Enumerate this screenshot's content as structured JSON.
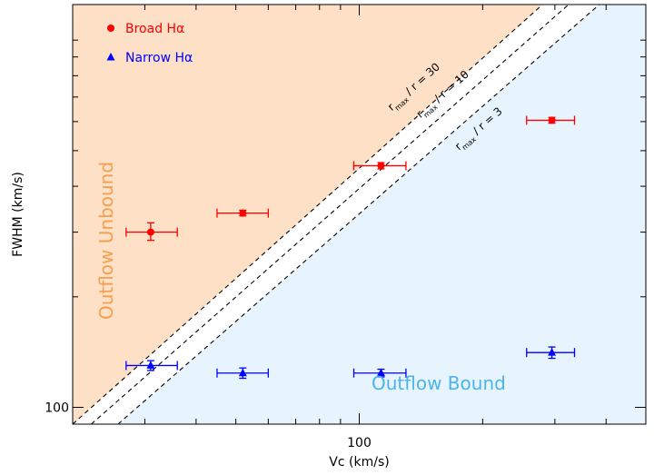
{
  "chart_data": {
    "type": "scatter",
    "xlabel": "Vc (km/s)",
    "ylabel": "FWHM (km/s)",
    "x_scale": "log",
    "y_scale": "log",
    "xlim": [
      20,
      500
    ],
    "ylim": [
      90,
      1250
    ],
    "x_tick_labels": [
      {
        "value": 100,
        "label": "100"
      }
    ],
    "y_tick_labels": [
      {
        "value": 100,
        "label": "100"
      }
    ],
    "x_minor_ticks": [
      30,
      40,
      50,
      60,
      70,
      80,
      90,
      200,
      300,
      400
    ],
    "y_minor_ticks": [
      200,
      300,
      400,
      500,
      600,
      700,
      800,
      900,
      1000
    ],
    "legend": {
      "placement": "top-left",
      "entries": [
        {
          "label": "Broad Hα",
          "marker": "circle",
          "color": "#ff0000"
        },
        {
          "label": "Narrow Hα",
          "marker": "triangle",
          "color": "#0000ff"
        }
      ]
    },
    "regions": {
      "unbound_label": "Outflow Unbound",
      "bound_label": "Outflow Bound",
      "unbound_color": "#fde0c6",
      "bound_color": "#e8f4fd",
      "unbound_text_color": "#f5a050",
      "bound_text_color": "#4ab4f0"
    },
    "lines": [
      {
        "label": "r_max / r = 30",
        "main": "r",
        "sub": "max",
        "rest": " / r = 30",
        "x1": 20,
        "y1": 90,
        "x2": 280,
        "y2": 1250,
        "label_x": 120,
        "label_y": 640
      },
      {
        "label": "r_max / r = 10",
        "main": "r",
        "sub": "max",
        "rest": " / r = 10",
        "x1": 22.2,
        "y1": 90,
        "x2": 324,
        "y2": 1250,
        "label_x": 141,
        "label_y": 612
      },
      {
        "label": "r_max / r = 3",
        "main": "r",
        "sub": "max",
        "rest": " / r = 3",
        "x1": 25.8,
        "y1": 90,
        "x2": 385,
        "y2": 1250,
        "label_x": 175,
        "label_y": 500
      }
    ],
    "series": [
      {
        "name": "Broad Hα",
        "marker": "circle",
        "color": "#ff0000",
        "points": [
          {
            "x": 31,
            "y": 300,
            "xerr": [
              27,
              36
            ],
            "yerr": [
              285,
              318
            ]
          },
          {
            "x": 52,
            "y": 338,
            "xerr": [
              45,
              60
            ],
            "yerr": [
              332,
              344
            ]
          },
          {
            "x": 113,
            "y": 455,
            "xerr": [
              97,
              130
            ],
            "yerr": [
              446,
              464
            ]
          },
          {
            "x": 295,
            "y": 605,
            "xerr": [
              256,
              335
            ],
            "yerr": [
              594,
              616
            ]
          }
        ]
      },
      {
        "name": "Narrow Hα",
        "marker": "triangle",
        "color": "#0000ff",
        "points": [
          {
            "x": 31,
            "y": 130,
            "xerr": [
              27,
              36
            ],
            "yerr": [
              126,
              134
            ]
          },
          {
            "x": 52,
            "y": 124,
            "xerr": [
              45,
              60
            ],
            "yerr": [
              120,
              128
            ]
          },
          {
            "x": 113,
            "y": 124,
            "xerr": [
              97,
              130
            ],
            "yerr": [
              121,
              127
            ]
          },
          {
            "x": 295,
            "y": 141,
            "xerr": [
              256,
              335
            ],
            "yerr": [
              136,
              146
            ]
          }
        ]
      }
    ]
  }
}
